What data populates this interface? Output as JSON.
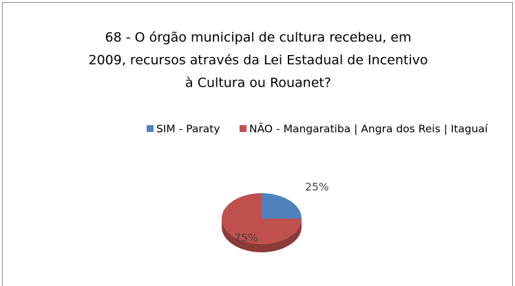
{
  "chart_data": {
    "type": "pie",
    "title": [
      "68 - O órgão municipal de cultura recebeu, em",
      "2009, recursos através da Lei Estadual de Incentivo",
      "à Cultura ou Rouanet?"
    ],
    "categories": [
      "SIM - Paraty",
      "NÃO - Mangaratiba | Angra dos Reis | Itaguaí"
    ],
    "values": [
      25,
      75
    ],
    "value_labels": [
      "25%",
      "75%"
    ],
    "colors": [
      "#4f81bd",
      "#c0504d"
    ],
    "legend": "top"
  }
}
